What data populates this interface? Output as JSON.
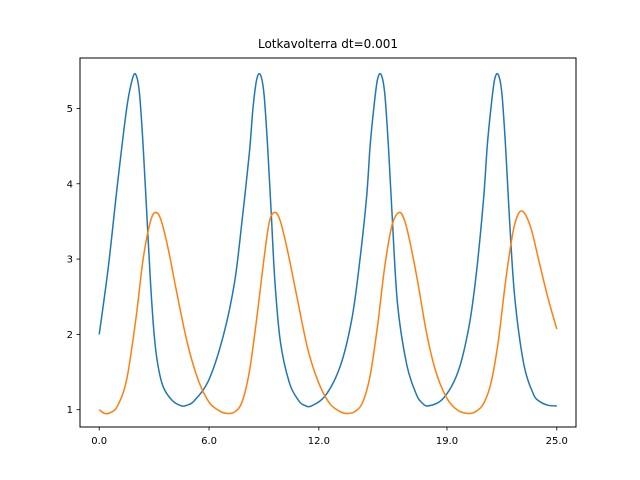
{
  "chart_data": {
    "type": "line",
    "title": "Lotkavolterra  dt=0.001",
    "xlabel": "",
    "ylabel": "",
    "xlim": [
      -1.05,
      26.05
    ],
    "ylim": [
      0.77,
      5.67
    ],
    "x_ticks": [
      0.0,
      6.0,
      12.0,
      19.0,
      25.0
    ],
    "x_tick_labels": [
      "0.0",
      "6.0",
      "12.0",
      "19.0",
      "25.0"
    ],
    "y_ticks": [
      1,
      2,
      3,
      4,
      5
    ],
    "y_tick_labels": [
      "1",
      "2",
      "3",
      "4",
      "5"
    ],
    "grid": false,
    "legend": "none",
    "series": [
      {
        "color": "#1f77b4",
        "x": [
          0,
          0.5,
          1.0,
          1.5,
          1.8,
          2.0,
          2.2,
          2.4,
          2.6,
          2.8,
          3.0,
          3.2,
          3.5,
          4.0,
          4.5,
          4.8,
          5.2,
          6.0,
          6.8,
          7.4,
          7.8,
          8.2,
          8.4,
          8.6,
          8.8,
          9.0,
          9.2,
          9.4,
          9.6,
          9.9,
          10.4,
          10.9,
          11.2,
          11.6,
          12.4,
          13.2,
          13.8,
          14.2,
          14.6,
          14.8,
          15.0,
          15.2,
          15.4,
          15.6,
          15.8,
          16.0,
          16.3,
          16.8,
          17.3,
          17.6,
          18.0,
          18.8,
          19.6,
          20.2,
          20.6,
          21.0,
          21.2,
          21.4,
          21.6,
          21.8,
          22.0,
          22.2,
          22.4,
          22.7,
          23.2,
          23.7,
          24.0,
          24.5,
          25.0
        ],
        "y": [
          2.0,
          2.9,
          4.0,
          5.0,
          5.38,
          5.45,
          5.2,
          4.5,
          3.6,
          2.7,
          2.0,
          1.6,
          1.3,
          1.12,
          1.05,
          1.06,
          1.12,
          1.4,
          2.0,
          2.7,
          3.5,
          4.4,
          5.0,
          5.38,
          5.45,
          5.2,
          4.5,
          3.6,
          2.7,
          1.9,
          1.35,
          1.12,
          1.06,
          1.05,
          1.2,
          1.6,
          2.2,
          2.9,
          3.8,
          4.5,
          5.0,
          5.38,
          5.45,
          5.2,
          4.5,
          3.6,
          2.4,
          1.6,
          1.22,
          1.1,
          1.05,
          1.15,
          1.5,
          2.1,
          2.8,
          3.8,
          4.5,
          5.0,
          5.38,
          5.45,
          5.2,
          4.5,
          3.6,
          2.5,
          1.6,
          1.22,
          1.12,
          1.06,
          1.05
        ]
      },
      {
        "color": "#ff7f0e",
        "x": [
          0,
          0.3,
          0.6,
          1.0,
          1.5,
          2.0,
          2.4,
          2.8,
          3.1,
          3.4,
          3.8,
          4.2,
          4.8,
          5.4,
          6.0,
          6.6,
          7.0,
          7.4,
          7.8,
          8.2,
          8.6,
          9.0,
          9.3,
          9.6,
          9.9,
          10.3,
          10.8,
          11.4,
          12.0,
          12.6,
          13.2,
          13.6,
          14.0,
          14.4,
          14.8,
          15.2,
          15.6,
          16.0,
          16.4,
          16.7,
          17.0,
          17.4,
          17.9,
          18.4,
          19.0,
          19.6,
          20.2,
          20.6,
          21.0,
          21.4,
          21.8,
          22.2,
          22.6,
          22.9,
          23.2,
          23.6,
          24.0,
          24.5,
          25.0
        ],
        "y": [
          1.0,
          0.95,
          0.96,
          1.05,
          1.4,
          2.2,
          3.0,
          3.5,
          3.62,
          3.5,
          3.1,
          2.6,
          1.9,
          1.4,
          1.1,
          0.98,
          0.95,
          0.97,
          1.1,
          1.5,
          2.2,
          3.0,
          3.5,
          3.62,
          3.5,
          3.1,
          2.5,
          1.8,
          1.35,
          1.08,
          0.97,
          0.95,
          0.98,
          1.1,
          1.45,
          2.1,
          2.9,
          3.45,
          3.62,
          3.5,
          3.2,
          2.7,
          2.0,
          1.5,
          1.15,
          0.99,
          0.95,
          0.98,
          1.08,
          1.35,
          1.9,
          2.7,
          3.35,
          3.6,
          3.62,
          3.4,
          3.0,
          2.5,
          2.07
        ]
      }
    ]
  }
}
